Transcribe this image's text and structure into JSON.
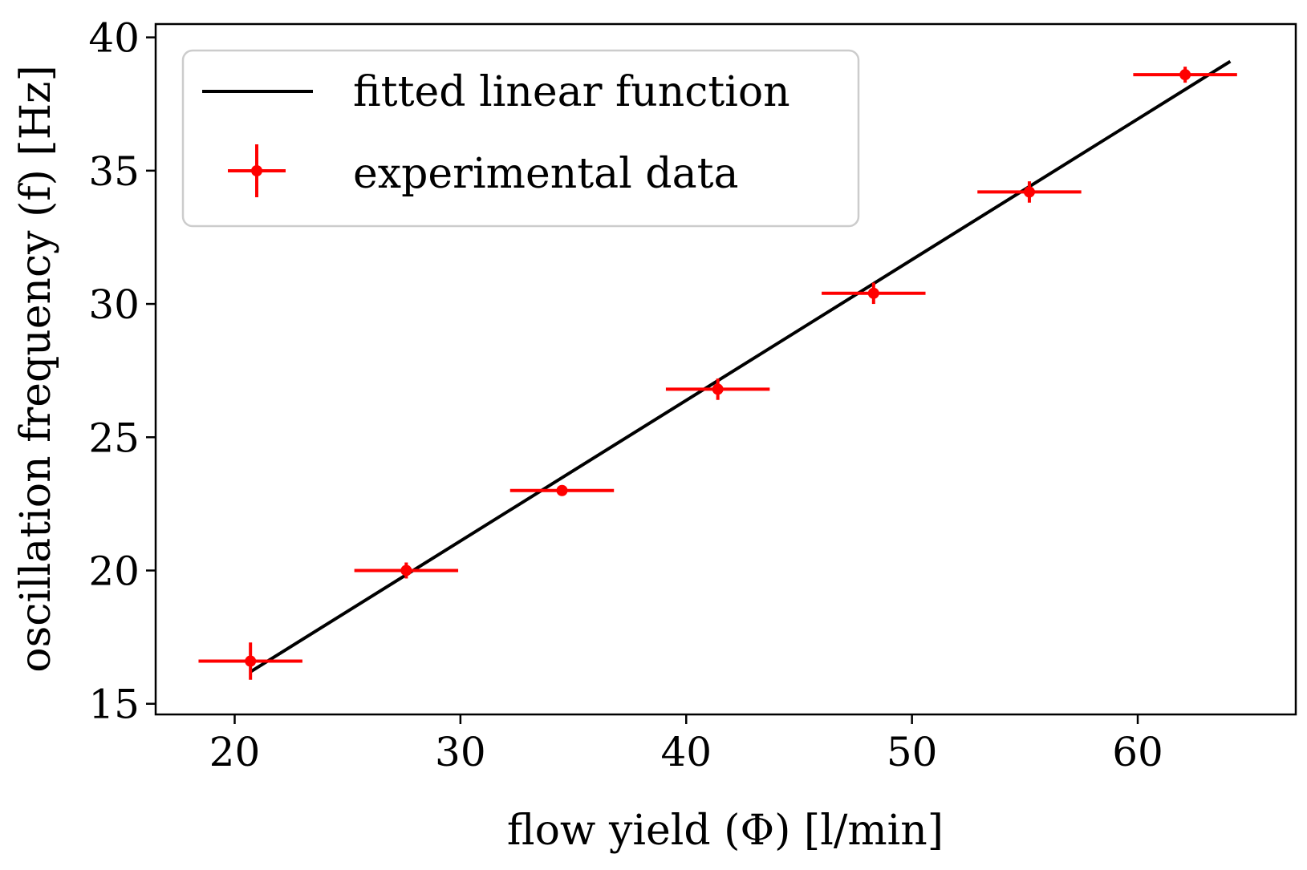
{
  "chart_data": {
    "type": "scatter",
    "xlabel": "flow yield (Φ) [l/min]",
    "ylabel": "oscillation frequency (f) [Hz]",
    "xlim": [
      16.5,
      67.0
    ],
    "ylim": [
      14.6,
      40.5
    ],
    "xticks": [
      20,
      30,
      40,
      50,
      60
    ],
    "yticks": [
      15,
      20,
      25,
      30,
      35,
      40
    ],
    "grid": false,
    "legend_position": "top-left",
    "series": [
      {
        "name": "fitted linear function",
        "kind": "line",
        "color": "#000000",
        "x": [
          20.7,
          64.1
        ],
        "y": [
          16.2,
          39.1
        ]
      },
      {
        "name": "experimental data",
        "kind": "errorbar",
        "color": "#ff0000",
        "points": [
          {
            "x": 20.7,
            "y": 16.6,
            "xerr": 2.3,
            "yerr": 0.7
          },
          {
            "x": 27.6,
            "y": 20.0,
            "xerr": 2.3,
            "yerr": 0.3
          },
          {
            "x": 34.5,
            "y": 23.0,
            "xerr": 2.3,
            "yerr": 0.2
          },
          {
            "x": 41.4,
            "y": 26.8,
            "xerr": 2.3,
            "yerr": 0.4
          },
          {
            "x": 48.3,
            "y": 30.4,
            "xerr": 2.3,
            "yerr": 0.4
          },
          {
            "x": 55.2,
            "y": 34.2,
            "xerr": 2.3,
            "yerr": 0.4
          },
          {
            "x": 62.1,
            "y": 38.6,
            "xerr": 2.3,
            "yerr": 0.3
          }
        ]
      }
    ]
  }
}
